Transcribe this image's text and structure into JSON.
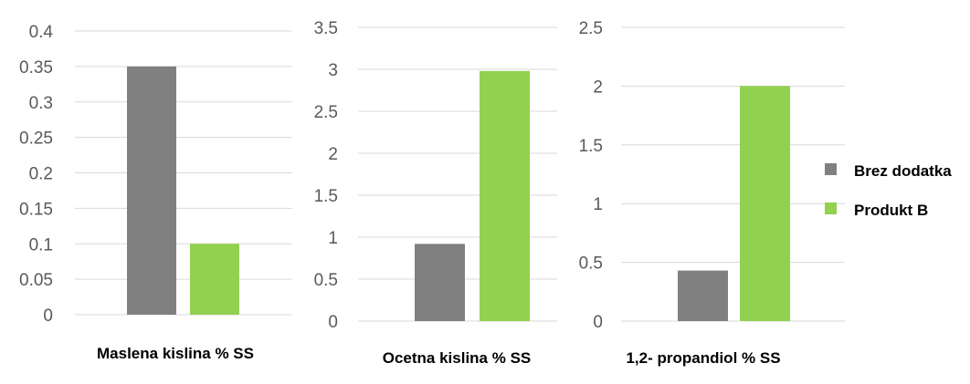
{
  "legend": {
    "position": "right",
    "items": [
      {
        "label": "Brez dodatka",
        "color": "#808080"
      },
      {
        "label": "Produkt B",
        "color": "#92D050"
      }
    ]
  },
  "chart_data": [
    {
      "type": "bar",
      "title": "Maslena kislina % SS",
      "categories": [
        ""
      ],
      "series": [
        {
          "name": "Brez dodatka",
          "values": [
            0.35
          ]
        },
        {
          "name": "Produkt B",
          "values": [
            0.1
          ]
        }
      ],
      "ylim": [
        0,
        0.4
      ],
      "yticks": [
        "0",
        "0.05",
        "0.1",
        "0.15",
        "0.2",
        "0.25",
        "0.3",
        "0.35",
        "0.4"
      ],
      "grid": true
    },
    {
      "type": "bar",
      "title": "Ocetna kislina % SS",
      "categories": [
        ""
      ],
      "series": [
        {
          "name": "Brez dodatka",
          "values": [
            0.92
          ]
        },
        {
          "name": "Produkt B",
          "values": [
            2.98
          ]
        }
      ],
      "ylim": [
        0,
        3.5
      ],
      "yticks": [
        "0",
        "0.5",
        "1",
        "1.5",
        "2",
        "2.5",
        "3",
        "3.5"
      ],
      "grid": true
    },
    {
      "type": "bar",
      "title": "1,2- propandiol % SS",
      "categories": [
        ""
      ],
      "series": [
        {
          "name": "Brez dodatka",
          "values": [
            0.43
          ]
        },
        {
          "name": "Produkt B",
          "values": [
            2.0
          ]
        }
      ],
      "ylim": [
        0,
        2.5
      ],
      "yticks": [
        "0",
        "0.5",
        "1",
        "1.5",
        "2",
        "2.5"
      ],
      "grid": true
    }
  ]
}
